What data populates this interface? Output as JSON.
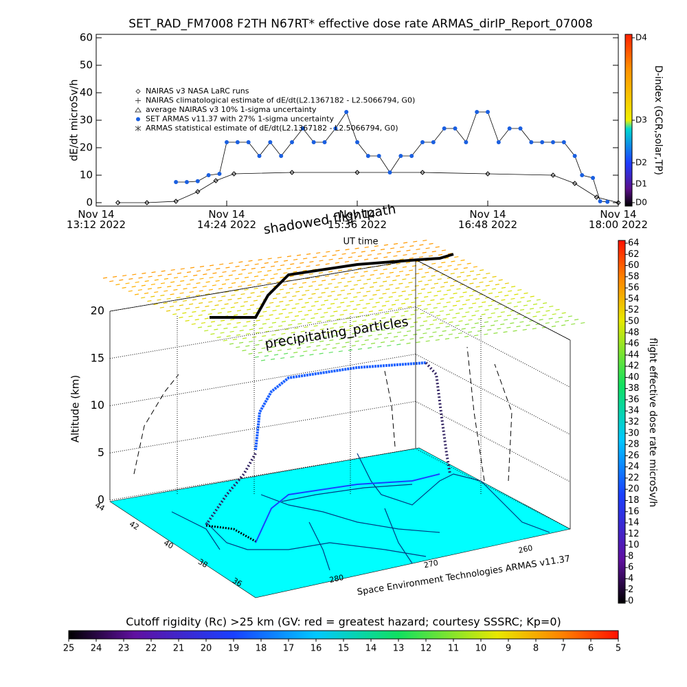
{
  "chart_data": [
    {
      "type": "scatter",
      "title": "SET_RAD_FM7008  F2TH N67RT* effective dose rate ARMAS_dirIP_Report_07008",
      "xlabel": "UT time",
      "ylabel": "dE/dt microSv/h",
      "xlim": [
        "2022-11-14 13:12",
        "2022-11-14 18:00"
      ],
      "xticks": [
        {
          "value": "2022-11-14 13:12",
          "label": "Nov 14\n13:12 2022"
        },
        {
          "value": "2022-11-14 14:24",
          "label": "Nov 14\n14:24 2022"
        },
        {
          "value": "2022-11-14 15:36",
          "label": "Nov 14\n15:36 2022"
        },
        {
          "value": "2022-11-14 16:48",
          "label": "Nov 14\n16:48 2022"
        },
        {
          "value": "2022-11-14 18:00",
          "label": "Nov 14\n18:00 2022"
        }
      ],
      "ylim": [
        -1.25,
        61.25
      ],
      "yticks": [
        0,
        10,
        20,
        30,
        40,
        50,
        60
      ],
      "legend_entries": [
        "NAIRAS v3 NASA LaRC runs",
        "NAIRAS climatological estimate of dE/dt(L2.1367182 - L2.5066794, G0)",
        "average NAIRAS v3 10% 1-sigma uncertainty",
        "SET ARMAS v11.37 with 27% 1-sigma uncertainty",
        "ARMAS statistical estimate of dE/dt(L2.1367182 - L2.5066794, G0)"
      ],
      "series": [
        {
          "color": "#000000",
          "marker": "diamond",
          "x": [
            "2022-11-14 13:24",
            "2022-11-14 13:40",
            "2022-11-14 13:56",
            "2022-11-14 14:08",
            "2022-11-14 14:18",
            "2022-11-14 14:28",
            "2022-11-14 15:00",
            "2022-11-14 15:36",
            "2022-11-14 16:12",
            "2022-11-14 16:48",
            "2022-11-14 17:24",
            "2022-11-14 17:36",
            "2022-11-14 17:48",
            "2022-11-14 18:00"
          ],
          "values": [
            0,
            0,
            0.5,
            4,
            8,
            10.5,
            11,
            11,
            11,
            10.5,
            10,
            7,
            2,
            0
          ]
        },
        {
          "color": "#1a5fe0",
          "marker": "circle",
          "x": [
            "2022-11-14 13:56",
            "2022-11-14 14:02",
            "2022-11-14 14:08",
            "2022-11-14 14:14",
            "2022-11-14 14:20",
            "2022-11-14 14:24",
            "2022-11-14 14:30",
            "2022-11-14 14:36",
            "2022-11-14 14:42",
            "2022-11-14 14:48",
            "2022-11-14 14:54",
            "2022-11-14 15:00",
            "2022-11-14 15:06",
            "2022-11-14 15:12",
            "2022-11-14 15:18",
            "2022-11-14 15:24",
            "2022-11-14 15:30",
            "2022-11-14 15:36",
            "2022-11-14 15:42",
            "2022-11-14 15:48",
            "2022-11-14 15:54",
            "2022-11-14 16:00",
            "2022-11-14 16:06",
            "2022-11-14 16:12",
            "2022-11-14 16:18",
            "2022-11-14 16:24",
            "2022-11-14 16:30",
            "2022-11-14 16:36",
            "2022-11-14 16:42",
            "2022-11-14 16:48",
            "2022-11-14 16:54",
            "2022-11-14 17:00",
            "2022-11-14 17:06",
            "2022-11-14 17:12",
            "2022-11-14 17:18",
            "2022-11-14 17:24",
            "2022-11-14 17:30",
            "2022-11-14 17:36",
            "2022-11-14 17:40",
            "2022-11-14 17:46",
            "2022-11-14 17:50",
            "2022-11-14 17:54"
          ],
          "values": [
            7.5,
            7.5,
            7.8,
            10,
            10.5,
            22,
            22,
            22,
            17,
            22,
            17,
            22,
            27,
            22,
            22,
            27,
            33,
            22,
            17,
            17,
            11,
            17,
            17,
            22,
            22,
            27,
            27,
            22,
            33,
            33,
            22,
            27,
            27,
            22,
            22,
            22,
            22,
            17,
            10,
            9,
            0.5,
            0.3
          ]
        }
      ],
      "colorbar": {
        "label": "D-index (GCR,solar,TP)",
        "ticks": [
          {
            "value": 0,
            "label": "D0"
          },
          {
            "value": 6.75,
            "label": "D1"
          },
          {
            "value": 14.5,
            "label": "D2"
          },
          {
            "value": 30,
            "label": "D3"
          },
          {
            "value": 60,
            "label": "D4"
          }
        ]
      }
    },
    {
      "type": "flightpath3d",
      "annotations": [
        "shadowed flightpath",
        "precipitating_particles"
      ],
      "zlabel": "Altitude (km)",
      "zlim": [
        0,
        20
      ],
      "zticks": [
        0,
        5,
        10,
        15,
        20
      ],
      "latticks": [
        44,
        42,
        40,
        38,
        36
      ],
      "lonticks": [
        280,
        270,
        260
      ],
      "credit": "Space Environment Technologies ARMAS v11.37",
      "colorbar": {
        "label": "flight effective dose rate microSv/h",
        "lim": [
          0,
          64
        ],
        "ticks": [
          0,
          2,
          4,
          6,
          8,
          10,
          12,
          14,
          16,
          18,
          20,
          22,
          24,
          26,
          28,
          30,
          32,
          34,
          36,
          38,
          40,
          42,
          44,
          46,
          48,
          50,
          52,
          54,
          56,
          58,
          60,
          62,
          64
        ]
      }
    },
    {
      "type": "colorbar",
      "title": "Cutoff rigidity (Rc) >25 km (GV: red = greatest hazard; courtesy SSSRC; Kp=0)",
      "lim": [
        25,
        5
      ],
      "ticks": [
        25,
        24,
        23,
        22,
        21,
        20,
        19,
        18,
        17,
        16,
        15,
        14,
        13,
        12,
        11,
        10,
        9,
        8,
        7,
        6,
        5
      ]
    }
  ]
}
